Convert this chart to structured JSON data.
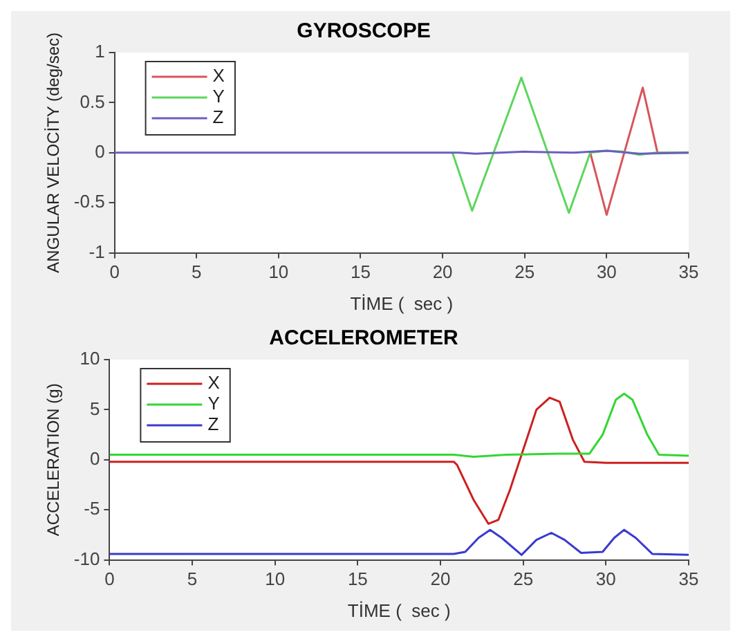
{
  "chart_data": [
    {
      "type": "line",
      "title": "GYROSCOPE",
      "xlabel": "TİME (  sec )",
      "ylabel": "ANGULAR VELOCİTY (deg/sec)",
      "xlim": [
        0,
        35
      ],
      "xticks": [
        0,
        5,
        10,
        15,
        20,
        25,
        30,
        35
      ],
      "ylim": [
        -1,
        1
      ],
      "yticks": [
        -1,
        -0.5,
        0,
        0.5,
        1
      ],
      "grid": false,
      "legend": "top left",
      "marker": "none",
      "line_style": "solid",
      "series": [
        {
          "name": "X",
          "color": "#d9545c",
          "x": [
            29,
            30,
            32.2,
            33.1,
            35
          ],
          "values": [
            0,
            -0.62,
            0.65,
            0,
            0
          ]
        },
        {
          "name": "Y",
          "color": "#5cd65c",
          "x": [
            20.6,
            21.8,
            24.8,
            27.7,
            29,
            30,
            31,
            32,
            33,
            35
          ],
          "values": [
            0,
            -0.58,
            0.75,
            -0.6,
            0,
            0.02,
            0.01,
            -0.02,
            0,
            0
          ]
        },
        {
          "name": "Z",
          "color": "#6a5fbf",
          "x": [
            0,
            21,
            22,
            25,
            28,
            30,
            32,
            35
          ],
          "values": [
            0,
            0,
            -0.01,
            0.01,
            0,
            0.02,
            -0.01,
            0
          ]
        }
      ]
    },
    {
      "type": "line",
      "title": "ACCELEROMETER",
      "xlabel": "TİME (  sec )",
      "ylabel": "ACCELERATION (g)",
      "xlim": [
        0,
        35
      ],
      "xticks": [
        0,
        5,
        10,
        15,
        20,
        25,
        30,
        35
      ],
      "ylim": [
        -10,
        10
      ],
      "yticks": [
        -10,
        -5,
        0,
        5,
        10
      ],
      "grid": false,
      "legend": "top left",
      "marker": "none",
      "line_style": "solid",
      "series": [
        {
          "name": "X",
          "color": "#cc2020",
          "x": [
            0,
            20.8,
            21,
            22,
            22.9,
            23.5,
            24.2,
            25,
            25.8,
            26.6,
            27.2,
            28,
            28.7,
            30,
            35
          ],
          "values": [
            -0.2,
            -0.2,
            -0.5,
            -4,
            -6.4,
            -6,
            -3,
            1,
            5,
            6.2,
            5.8,
            2,
            -0.2,
            -0.3,
            -0.3
          ]
        },
        {
          "name": "Y",
          "color": "#33d633",
          "x": [
            0,
            20.8,
            22,
            24,
            27,
            29,
            29.8,
            30.6,
            31.1,
            31.6,
            32.5,
            33.2,
            35
          ],
          "values": [
            0.5,
            0.5,
            0.3,
            0.5,
            0.6,
            0.6,
            2.5,
            6,
            6.6,
            6,
            2.5,
            0.5,
            0.4
          ]
        },
        {
          "name": "Z",
          "color": "#3a3ad0",
          "x": [
            0,
            20.8,
            21.5,
            22.3,
            23,
            23.7,
            24.9,
            25.8,
            26.7,
            27.5,
            28.5,
            29.8,
            30.5,
            31.1,
            31.8,
            32.8,
            35
          ],
          "values": [
            -9.4,
            -9.4,
            -9.2,
            -7.8,
            -7,
            -7.8,
            -9.5,
            -8,
            -7.3,
            -8,
            -9.3,
            -9.2,
            -7.8,
            -7,
            -7.8,
            -9.4,
            -9.5
          ]
        }
      ]
    }
  ]
}
